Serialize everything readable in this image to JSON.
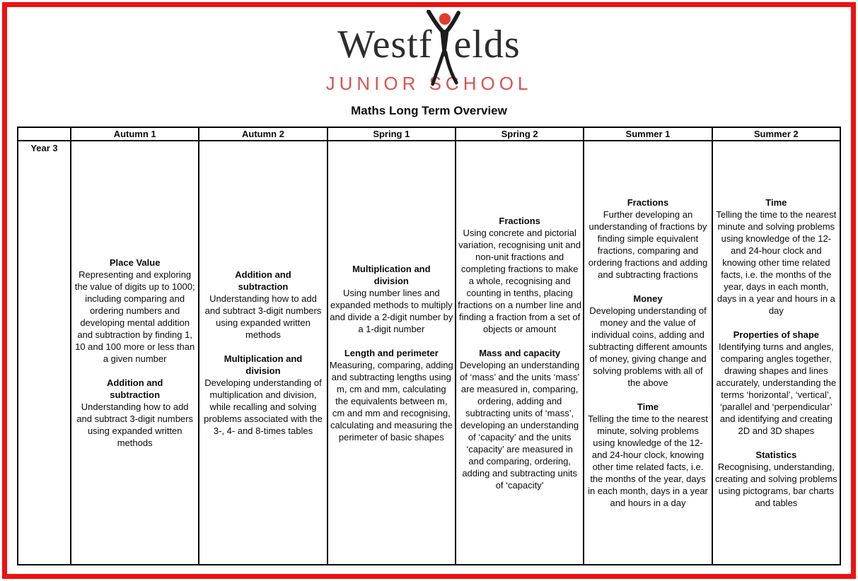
{
  "page": {
    "frame_color": "#ee1111"
  },
  "logo": {
    "name_part1": "Westf",
    "name_part2": "elds",
    "figure_icon": "stick-figure-raised-arms-red-head",
    "head_color": "#e23b2e",
    "subtitle": "JUNIOR SCHOOL",
    "subtitle_color": "#d9534f"
  },
  "title": "Maths Long Term Overview",
  "table": {
    "row_label": "Year 3",
    "columns": [
      "Autumn 1",
      "Autumn 2",
      "Spring 1",
      "Spring 2",
      "Summer 1",
      "Summer 2"
    ],
    "cells": [
      {
        "sections": [
          {
            "heading": "Place Value",
            "body": "Representing and exploring the value of digits up to 1000; including comparing and ordering numbers and developing mental addition and subtraction by finding 1, 10 and 100 more or less than a given number"
          },
          {
            "heading": "Addition and\nsubtraction",
            "body": "Understanding how to add and subtract 3-digit numbers using expanded written methods"
          }
        ]
      },
      {
        "sections": [
          {
            "heading": "Addition and\nsubtraction",
            "body": "Understanding how to add and subtract 3-digit numbers using expanded written methods"
          },
          {
            "heading": "Multiplication and\ndivision",
            "body": "Developing understanding of multiplication and division, while recalling and solving problems associated with the 3-, 4- and 8-times tables"
          }
        ]
      },
      {
        "sections": [
          {
            "heading": "Multiplication and\ndivision",
            "body": "Using number lines and expanded methods to multiply and divide a 2-digit number by a 1-digit number"
          },
          {
            "heading": "Length and perimeter",
            "body": "Measuring, comparing, adding and subtracting lengths using m, cm and mm, calculating the equivalents between m, cm and mm and recognising, calculating and measuring the perimeter of basic shapes"
          }
        ]
      },
      {
        "sections": [
          {
            "heading": "Fractions",
            "body": "Using concrete and pictorial variation, recognising unit and non-unit fractions and completing fractions to make a whole, recognising and counting in tenths, placing fractions on a number line and finding a fraction from a set of objects or amount"
          },
          {
            "heading": "Mass and capacity",
            "body": "Developing an understanding of ‘mass’ and the units ‘mass’ are measured in, comparing, ordering, adding and subtracting units of ‘mass’, developing an understanding of ‘capacity’ and the units ‘capacity’ are measured in and comparing, ordering, adding and subtracting units of ‘capacity’"
          }
        ]
      },
      {
        "sections": [
          {
            "heading": "Fractions",
            "body": "Further developing an understanding of fractions by finding simple equivalent fractions, comparing and ordering fractions and adding and subtracting fractions"
          },
          {
            "heading": "Money",
            "body": "Developing understanding of money and the value of individual coins, adding and subtracting different amounts of money, giving change and solving problems with all of the above"
          },
          {
            "heading": "Time",
            "body": "Telling the time to the nearest minute, solving problems using knowledge of the 12- and 24-hour clock, knowing other time related facts, i.e. the months of the year, days in each month, days in a year and hours in a day"
          }
        ]
      },
      {
        "sections": [
          {
            "heading": "Time",
            "body": "Telling the time to the nearest minute and solving problems using knowledge of the 12- and 24-hour clock and knowing other time related facts, i.e. the months of the year, days in each month, days in a year and hours in a day"
          },
          {
            "heading": "Properties of shape",
            "body": "Identifying turns and angles, comparing angles together, drawing shapes and lines accurately, understanding the terms ‘horizontal’, ‘vertical’, ‘parallel and ‘perpendicular’ and identifying and creating 2D and 3D shapes"
          },
          {
            "heading": "Statistics",
            "body": "Recognising, understanding, creating and solving problems using pictograms, bar charts and tables"
          }
        ]
      }
    ]
  }
}
